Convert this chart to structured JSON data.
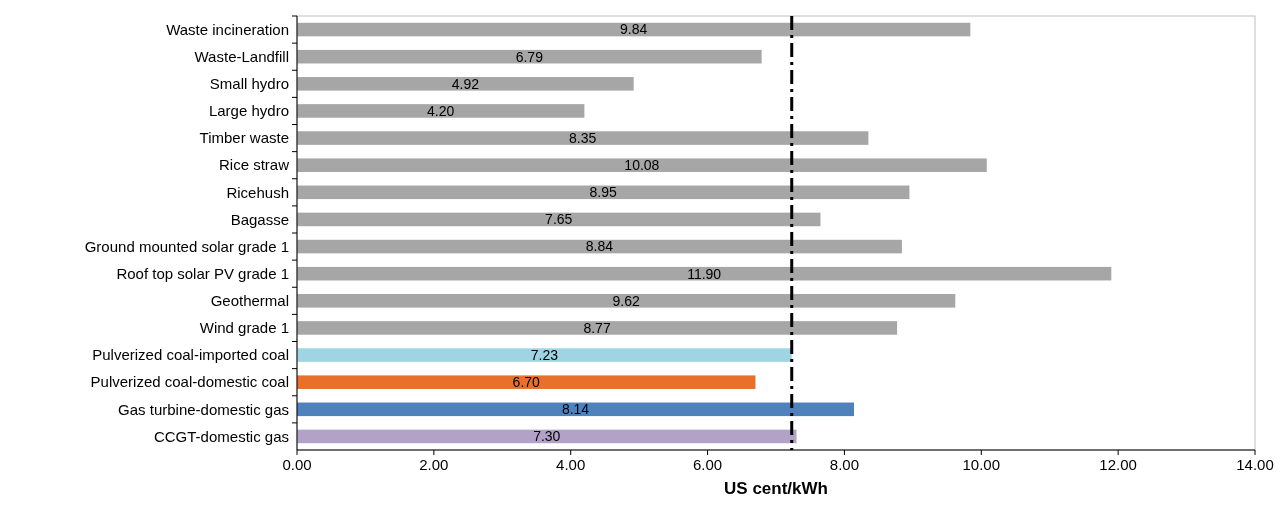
{
  "chart_data": {
    "type": "bar",
    "orientation": "horizontal",
    "xlabel": "US cent/kWh",
    "categories": [
      "Waste incineration",
      "Waste-Landfill",
      "Small hydro",
      "Large hydro",
      "Timber waste",
      "Rice straw",
      "Ricehush",
      "Bagasse",
      "Ground mounted solar grade 1",
      "Roof top solar PV grade 1",
      "Geothermal",
      "Wind grade 1",
      "Pulverized coal-imported coal",
      "Pulverized coal-domestic coal",
      "Gas turbine-domestic gas",
      "CCGT-domestic gas"
    ],
    "values": [
      9.84,
      6.79,
      4.92,
      4.2,
      8.35,
      10.08,
      8.95,
      7.65,
      8.84,
      11.9,
      9.62,
      8.77,
      7.23,
      6.7,
      8.14,
      7.3
    ],
    "value_labels": [
      "9.84",
      "6.79",
      "4.92",
      "4.20",
      "8.35",
      "10.08",
      "8.95",
      "7.65",
      "8.84",
      "11.90",
      "9.62",
      "8.77",
      "7.23",
      "6.70",
      "8.14",
      "7.30"
    ],
    "colors": [
      "#a6a6a6",
      "#a6a6a6",
      "#a6a6a6",
      "#a6a6a6",
      "#a6a6a6",
      "#a6a6a6",
      "#a6a6a6",
      "#a6a6a6",
      "#a6a6a6",
      "#a6a6a6",
      "#a6a6a6",
      "#a6a6a6",
      "#9fd4e2",
      "#e8702a",
      "#4f81bd",
      "#b3a2c7"
    ],
    "xlim": [
      0,
      14
    ],
    "xticks": [
      {
        "value": 0,
        "label": "0.00"
      },
      {
        "value": 2,
        "label": "2.00"
      },
      {
        "value": 4,
        "label": "4.00"
      },
      {
        "value": 6,
        "label": "6.00"
      },
      {
        "value": 8,
        "label": "8.00"
      },
      {
        "value": 10,
        "label": "10.00"
      },
      {
        "value": 12,
        "label": "12.00"
      },
      {
        "value": 14,
        "label": "14.00"
      }
    ],
    "ref_lines": [
      {
        "axis": "x",
        "value": 7.23,
        "color": "#000000",
        "line_style": "dashed"
      }
    ],
    "grid": false
  }
}
